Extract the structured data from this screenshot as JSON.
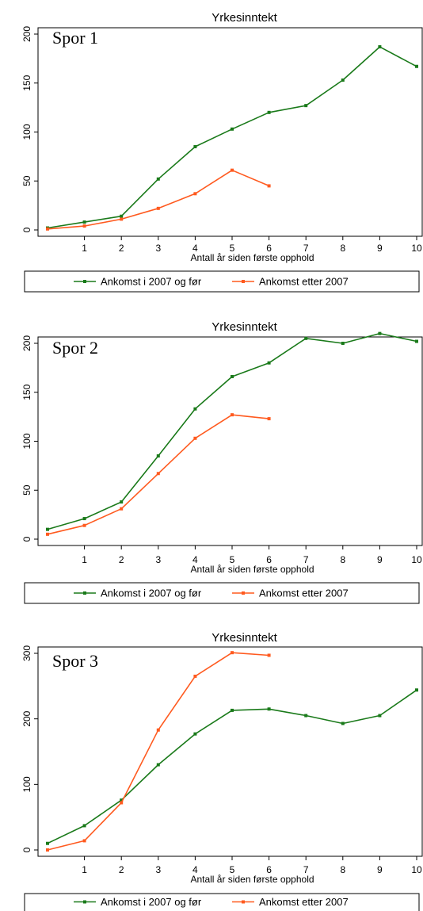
{
  "colors": {
    "green": "#1a7a1a",
    "orange": "#ff5a1f",
    "axis": "#000000"
  },
  "chart_data": [
    {
      "type": "line",
      "title": "Yrkesinntekt",
      "panel_label": "Spor 1",
      "xlabel": "Antall år siden første opphold",
      "ylabel": "",
      "xlim": [
        0,
        10
      ],
      "ylim": [
        0,
        200
      ],
      "xticks": [
        "1",
        "2",
        "3",
        "4",
        "5",
        "6",
        "7",
        "8",
        "9",
        "10"
      ],
      "yticks": [
        "0",
        "50",
        "100",
        "150",
        "200"
      ],
      "ytick_values": [
        0,
        50,
        100,
        150,
        200
      ],
      "series": [
        {
          "name": "Ankomst i 2007 og før",
          "x": [
            0,
            1,
            2,
            3,
            4,
            5,
            6,
            7,
            8,
            9,
            10
          ],
          "y": [
            2,
            8,
            14,
            52,
            85,
            103,
            120,
            127,
            153,
            187,
            167
          ]
        },
        {
          "name": "Ankomst etter 2007",
          "x": [
            0,
            1,
            2,
            3,
            4,
            5,
            6
          ],
          "y": [
            1,
            4,
            11,
            22,
            37,
            61,
            45
          ]
        }
      ]
    },
    {
      "type": "line",
      "title": "Yrkesinntekt",
      "panel_label": "Spor 2",
      "xlabel": "Antall år siden første opphold",
      "ylabel": "",
      "xlim": [
        0,
        10
      ],
      "ylim": [
        0,
        200
      ],
      "xticks": [
        "1",
        "2",
        "3",
        "4",
        "5",
        "6",
        "7",
        "8",
        "9",
        "10"
      ],
      "yticks": [
        "0",
        "50",
        "100",
        "150",
        "200"
      ],
      "ytick_values": [
        0,
        50,
        100,
        150,
        200
      ],
      "series": [
        {
          "name": "Ankomst i 2007 og før",
          "x": [
            0,
            1,
            2,
            3,
            4,
            5,
            6,
            7,
            8,
            9,
            10
          ],
          "y": [
            10,
            21,
            38,
            85,
            133,
            166,
            180,
            205,
            200,
            210,
            202
          ]
        },
        {
          "name": "Ankomst etter 2007",
          "x": [
            0,
            1,
            2,
            3,
            4,
            5,
            6
          ],
          "y": [
            5,
            14,
            31,
            67,
            103,
            127,
            123
          ]
        }
      ]
    },
    {
      "type": "line",
      "title": "Yrkesinntekt",
      "panel_label": "Spor 3",
      "xlabel": "Antall år siden første opphold",
      "ylabel": "",
      "xlim": [
        0,
        10
      ],
      "ylim": [
        0,
        300
      ],
      "xticks": [
        "1",
        "2",
        "3",
        "4",
        "5",
        "6",
        "7",
        "8",
        "9",
        "10"
      ],
      "yticks": [
        "0",
        "100",
        "200",
        "300"
      ],
      "ytick_values": [
        0,
        100,
        200,
        300
      ],
      "series": [
        {
          "name": "Ankomst i 2007 og før",
          "x": [
            0,
            1,
            2,
            3,
            4,
            5,
            6,
            7,
            8,
            9,
            10
          ],
          "y": [
            10,
            37,
            76,
            130,
            177,
            213,
            215,
            205,
            193,
            205,
            244
          ]
        },
        {
          "name": "Ankomst etter 2007",
          "x": [
            0,
            1,
            2,
            3,
            4,
            5,
            6
          ],
          "y": [
            0,
            14,
            72,
            183,
            265,
            301,
            297
          ]
        }
      ]
    }
  ],
  "legend": {
    "items": [
      "Ankomst i 2007 og før",
      "Ankomst etter 2007"
    ]
  }
}
